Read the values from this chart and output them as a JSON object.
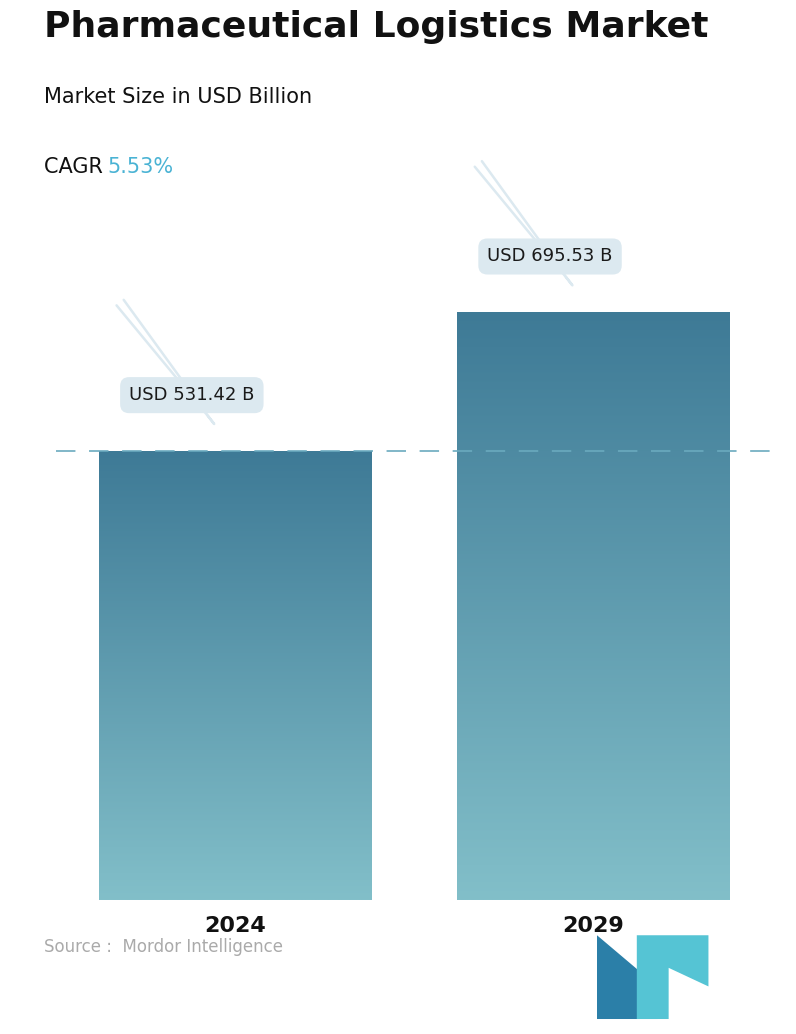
{
  "title": "Pharmaceutical Logistics Market",
  "subtitle": "Market Size in USD Billion",
  "cagr_label": "CAGR ",
  "cagr_value": "5.53%",
  "cagr_color": "#4ab3d4",
  "years": [
    "2024",
    "2029"
  ],
  "values": [
    531.42,
    695.53
  ],
  "bar_labels": [
    "USD 531.42 B",
    "USD 695.53 B"
  ],
  "bar_top_color": "#3e7a96",
  "bar_bottom_color": "#82bfc9",
  "dashed_line_color": "#6aaabe",
  "dashed_line_value": 531.42,
  "source_text": "Source :  Mordor Intelligence",
  "source_color": "#aaaaaa",
  "background_color": "#ffffff",
  "callout_bg": "#dce9f0",
  "callout_text_color": "#1a1a1a",
  "title_fontsize": 26,
  "subtitle_fontsize": 15,
  "cagr_fontsize": 15,
  "bar_label_fontsize": 13,
  "year_fontsize": 16,
  "source_fontsize": 12,
  "ylim": [
    0,
    820
  ],
  "bar_positions": [
    0.25,
    0.75
  ],
  "bar_width": 0.38
}
